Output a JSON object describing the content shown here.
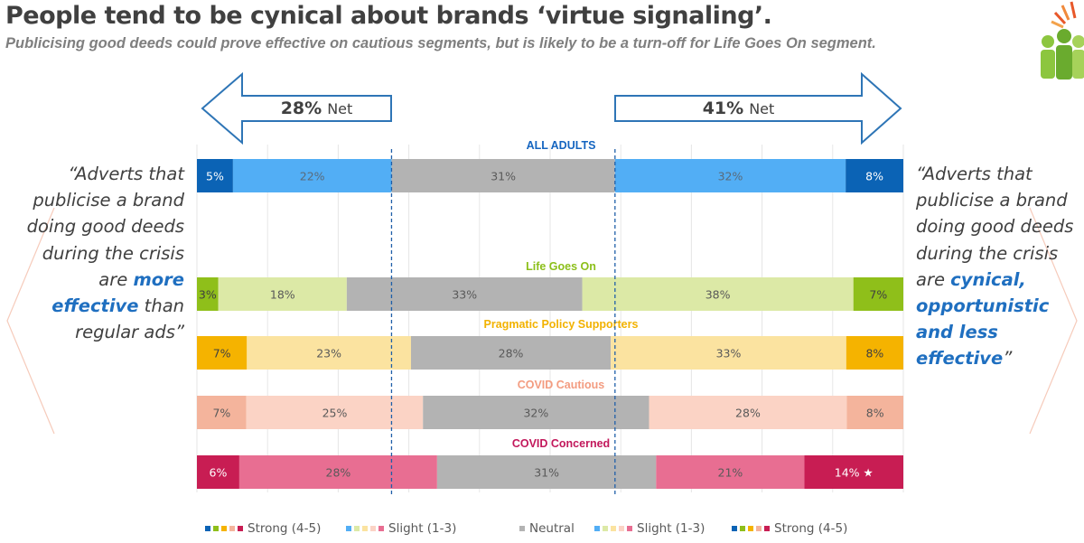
{
  "header": {
    "title": "People tend to be cynical about brands ‘virtue signaling’.",
    "subtitle": "Publicising good deeds could prove effective on cautious segments, but is likely to be a turn-off for Life Goes On segment."
  },
  "arrows": {
    "left": {
      "pct": "28%",
      "word": "Net"
    },
    "right": {
      "pct": "41%",
      "word": "Net"
    }
  },
  "quotes": {
    "left": {
      "open": "“Adverts that publicise a brand doing good deeds during the crisis are ",
      "highlight": "more effective",
      "close": " than regular ads”"
    },
    "right": {
      "open": "“Adverts that publicise a brand doing good deeds during the crisis are ",
      "highlight": "cynical, opportunistic and less effective",
      "close": "”"
    }
  },
  "legend": [
    {
      "label": "Strong (4-5)",
      "swatches": [
        "#0b63b5",
        "#8fbf1a",
        "#f5b300",
        "#f4b49c",
        "#c81d53"
      ]
    },
    {
      "label": "Slight (1-3)",
      "swatches": [
        "#52aef5",
        "#dce9a6",
        "#fbe3a0",
        "#fbd3c5",
        "#e86e92"
      ]
    },
    {
      "label": "Neutral",
      "swatches": [
        "#b3b3b3"
      ]
    },
    {
      "label": "Slight (1-3)",
      "swatches": [
        "#52aef5",
        "#dce9a6",
        "#fbe3a0",
        "#fbd3c5",
        "#e86e92"
      ]
    },
    {
      "label": "Strong (4-5)",
      "swatches": [
        "#0b63b5",
        "#8fbf1a",
        "#f5b300",
        "#f4b49c",
        "#c81d53"
      ]
    }
  ],
  "chart_data": {
    "type": "bar",
    "orientation": "horizontal-stacked",
    "columns": [
      "Strong (4-5)",
      "Slight (1-3)",
      "Neutral",
      "Slight (1-3)",
      "Strong (4-5)"
    ],
    "series": [
      {
        "name": "ALL ADULTS",
        "values": [
          5,
          22,
          31,
          32,
          8
        ],
        "labels": [
          "5%",
          "22%",
          "31%",
          "32%",
          "8%"
        ],
        "title_color": "#1565c0",
        "colors": [
          "#0b63b5",
          "#52aef5",
          "#b3b3b3",
          "#52aef5",
          "#0b63b5"
        ],
        "label_colors": [
          "#ffffff",
          "#5a6a7a",
          "#595959",
          "#5a6a7a",
          "#ffffff"
        ]
      },
      {
        "name": "Life Goes On",
        "values": [
          3,
          18,
          33,
          38,
          7
        ],
        "labels": [
          "3%",
          "18%",
          "33%",
          "38%",
          "7%"
        ],
        "title_color": "#8cbf1a",
        "colors": [
          "#8fbf1a",
          "#dce9a6",
          "#b3b3b3",
          "#dce9a6",
          "#8fbf1a"
        ],
        "label_colors": [
          "#404040",
          "#595959",
          "#595959",
          "#595959",
          "#404040"
        ]
      },
      {
        "name": "Pragmatic Policy Supporters",
        "values": [
          7,
          23,
          28,
          33,
          8
        ],
        "labels": [
          "7%",
          "23%",
          "28%",
          "33%",
          "8%"
        ],
        "title_color": "#f2b200",
        "colors": [
          "#f5b300",
          "#fbe3a0",
          "#b3b3b3",
          "#fbe3a0",
          "#f5b300"
        ],
        "label_colors": [
          "#404040",
          "#595959",
          "#595959",
          "#595959",
          "#404040"
        ]
      },
      {
        "name": "COVID Cautious",
        "values": [
          7,
          25,
          32,
          28,
          8
        ],
        "labels": [
          "7%",
          "25%",
          "32%",
          "28%",
          "8%"
        ],
        "title_color": "#f39c80",
        "colors": [
          "#f4b49c",
          "#fbd3c5",
          "#b3b3b3",
          "#fbd3c5",
          "#f4b49c"
        ],
        "label_colors": [
          "#595959",
          "#595959",
          "#595959",
          "#595959",
          "#595959"
        ]
      },
      {
        "name": "COVID Concerned",
        "values": [
          6,
          28,
          31,
          21,
          14
        ],
        "labels": [
          "6%",
          "28%",
          "31%",
          "21%",
          "14% ★"
        ],
        "title_color": "#c2185b",
        "colors": [
          "#c81d53",
          "#e86e92",
          "#b3b3b3",
          "#e86e92",
          "#c81d53"
        ],
        "label_colors": [
          "#ffffff",
          "#595959",
          "#595959",
          "#595959",
          "#ffffff"
        ]
      }
    ],
    "grid": true,
    "legend_position": "bottom"
  }
}
